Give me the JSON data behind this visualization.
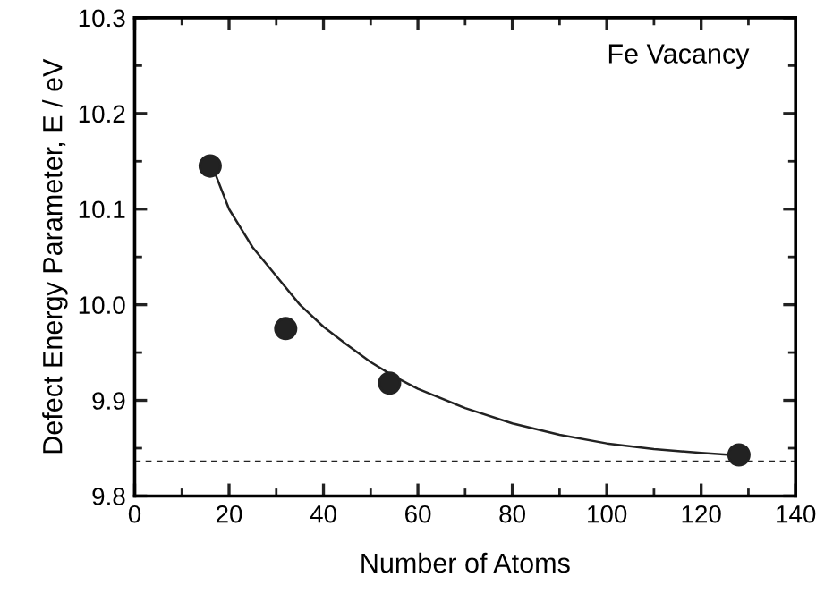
{
  "chart_data": {
    "type": "scatter",
    "xlabel": "Number of Atoms",
    "ylabel": "Defect Energy Parameter, E / eV",
    "annotations": [
      "Fe Vacancy"
    ],
    "series": [
      {
        "color": "#222222",
        "marker": "circle",
        "x": [
          16,
          32,
          54,
          128
        ],
        "values": [
          10.145,
          9.975,
          9.918,
          9.843
        ]
      },
      {
        "type": "line",
        "color": "#222222",
        "marker": "none",
        "line_style": "solid",
        "x": [
          17,
          20,
          25,
          30,
          35,
          40,
          45,
          50,
          55,
          60,
          70,
          80,
          90,
          100,
          110,
          120,
          126
        ],
        "values": [
          10.138,
          10.1,
          10.06,
          10.03,
          10.0,
          9.977,
          9.958,
          9.94,
          9.925,
          9.912,
          9.892,
          9.876,
          9.864,
          9.855,
          9.849,
          9.845,
          9.843
        ]
      }
    ],
    "ref_lines": [
      {
        "axis": "y",
        "value": 9.836,
        "line_style": "dashed",
        "color": "#222222"
      }
    ],
    "xlim": [
      0,
      140
    ],
    "xticks": [
      0,
      20,
      40,
      60,
      80,
      100,
      120,
      140
    ],
    "ylim": [
      9.8,
      10.3
    ],
    "yticks": [
      {
        "value": 9.8,
        "label": "9.8"
      },
      {
        "value": 9.9,
        "label": "9.9"
      },
      {
        "value": 10.0,
        "label": "10.0"
      },
      {
        "value": 10.1,
        "label": "10.1"
      },
      {
        "value": 10.2,
        "label": "10.2"
      },
      {
        "value": 10.3,
        "label": "10.3"
      }
    ],
    "grid": false,
    "legend": false
  }
}
